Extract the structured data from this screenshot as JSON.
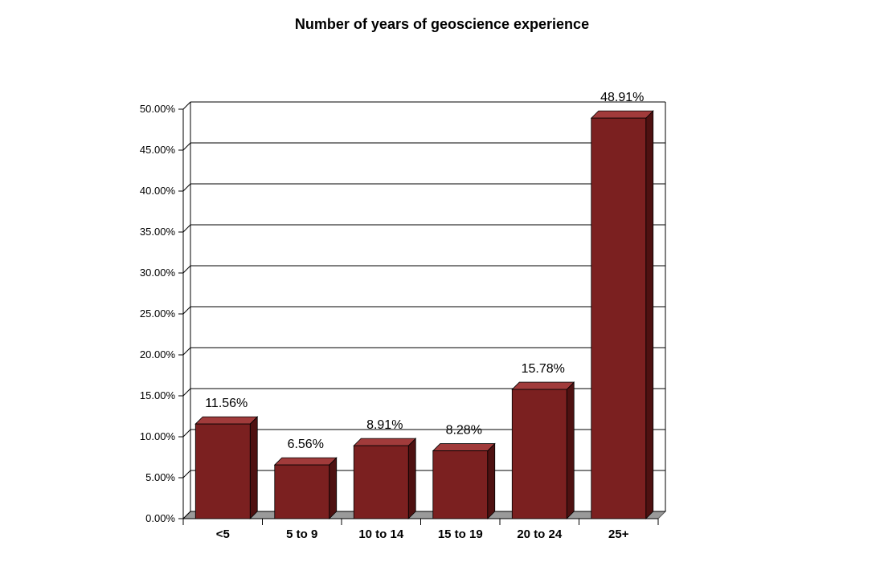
{
  "chart_data": {
    "type": "bar",
    "title": "Number of years of geoscience experience",
    "xlabel": "",
    "ylabel": "",
    "categories": [
      "<5",
      "5 to 9",
      "10 to 14",
      "15 to 19",
      "20 to 24",
      "25+"
    ],
    "values": [
      11.56,
      6.56,
      8.91,
      8.28,
      15.78,
      48.91
    ],
    "data_labels": [
      "11.56%",
      "6.56%",
      "8.91%",
      "8.28%",
      "15.78%",
      "48.91%"
    ],
    "ylim": [
      0,
      50
    ],
    "yticks": [
      0,
      5,
      10,
      15,
      20,
      25,
      30,
      35,
      40,
      45,
      50
    ],
    "ytick_labels": [
      "0.00%",
      "5.00%",
      "10.00%",
      "15.00%",
      "20.00%",
      "25.00%",
      "30.00%",
      "35.00%",
      "40.00%",
      "45.00%",
      "50.00%"
    ],
    "grid": true,
    "legend": "none",
    "colors": {
      "bar_front": "#7b2020",
      "bar_top": "#a13b3b",
      "bar_side": "#4e1111",
      "floor": "#9a9a9a",
      "gridline": "#000000"
    }
  }
}
